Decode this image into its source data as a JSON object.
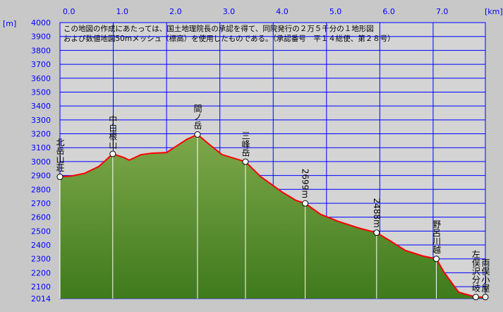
{
  "chart_data": {
    "type": "line",
    "note": [
      "この地図の作成にあたっては、国土地理院長の承認を得て、同院発行の２万５千分の１地形図",
      "および数値地図50mメッシュ（標高）を使用したものである。（承認番号　平１４総使、第２８号）"
    ],
    "x_unit": "[km]",
    "y_unit": "[m]",
    "xlim": [
      0,
      7.98
    ],
    "ylim": [
      2014,
      4000
    ],
    "xticks": [
      {
        "value": 0,
        "label": "0.0"
      },
      {
        "value": 1,
        "label": "1.0"
      },
      {
        "value": 2,
        "label": "2.0"
      },
      {
        "value": 3,
        "label": "3.0"
      },
      {
        "value": 4,
        "label": "4.0"
      },
      {
        "value": 5,
        "label": "5.0"
      },
      {
        "value": 6,
        "label": "6.0"
      },
      {
        "value": 7,
        "label": "7.0"
      }
    ],
    "yticks": [
      2014,
      2100,
      2200,
      2300,
      2400,
      2500,
      2600,
      2700,
      2800,
      2900,
      3000,
      3100,
      3200,
      3300,
      3400,
      3500,
      3600,
      3700,
      3800,
      3900,
      4000
    ],
    "grid": true,
    "color": "#ff0000",
    "x": [
      0,
      0.2,
      0.46,
      0.73,
      0.99,
      1.19,
      1.3,
      1.52,
      1.72,
      2.0,
      2.18,
      2.38,
      2.58,
      2.78,
      3.04,
      3.48,
      3.77,
      4.17,
      4.43,
      4.6,
      4.89,
      5.22,
      5.62,
      5.94,
      6.15,
      6.48,
      6.81,
      7.06,
      7.21,
      7.48,
      7.8,
      7.98
    ],
    "values": [
      2890,
      2895,
      2915,
      2965,
      3055,
      3030,
      3010,
      3050,
      3060,
      3065,
      3110,
      3160,
      3195,
      3130,
      3050,
      2999,
      2890,
      2780,
      2720,
      2699,
      2620,
      2570,
      2520,
      2488,
      2440,
      2360,
      2320,
      2300,
      2200,
      2060,
      2025,
      2025
    ],
    "waypoints": {
      "names": [
        "北岳山荘",
        "中白根山",
        "間ノ岳",
        "三峰岳",
        "2699m",
        "2488m",
        "野呂川越",
        "左俣沢分岐",
        "両俣小屋"
      ],
      "x": [
        0,
        0.99,
        2.58,
        3.48,
        4.6,
        5.94,
        7.06,
        7.8,
        7.98
      ],
      "values": [
        2890,
        3055,
        3195,
        2999,
        2699,
        2488,
        2300,
        2025,
        2025
      ]
    }
  }
}
